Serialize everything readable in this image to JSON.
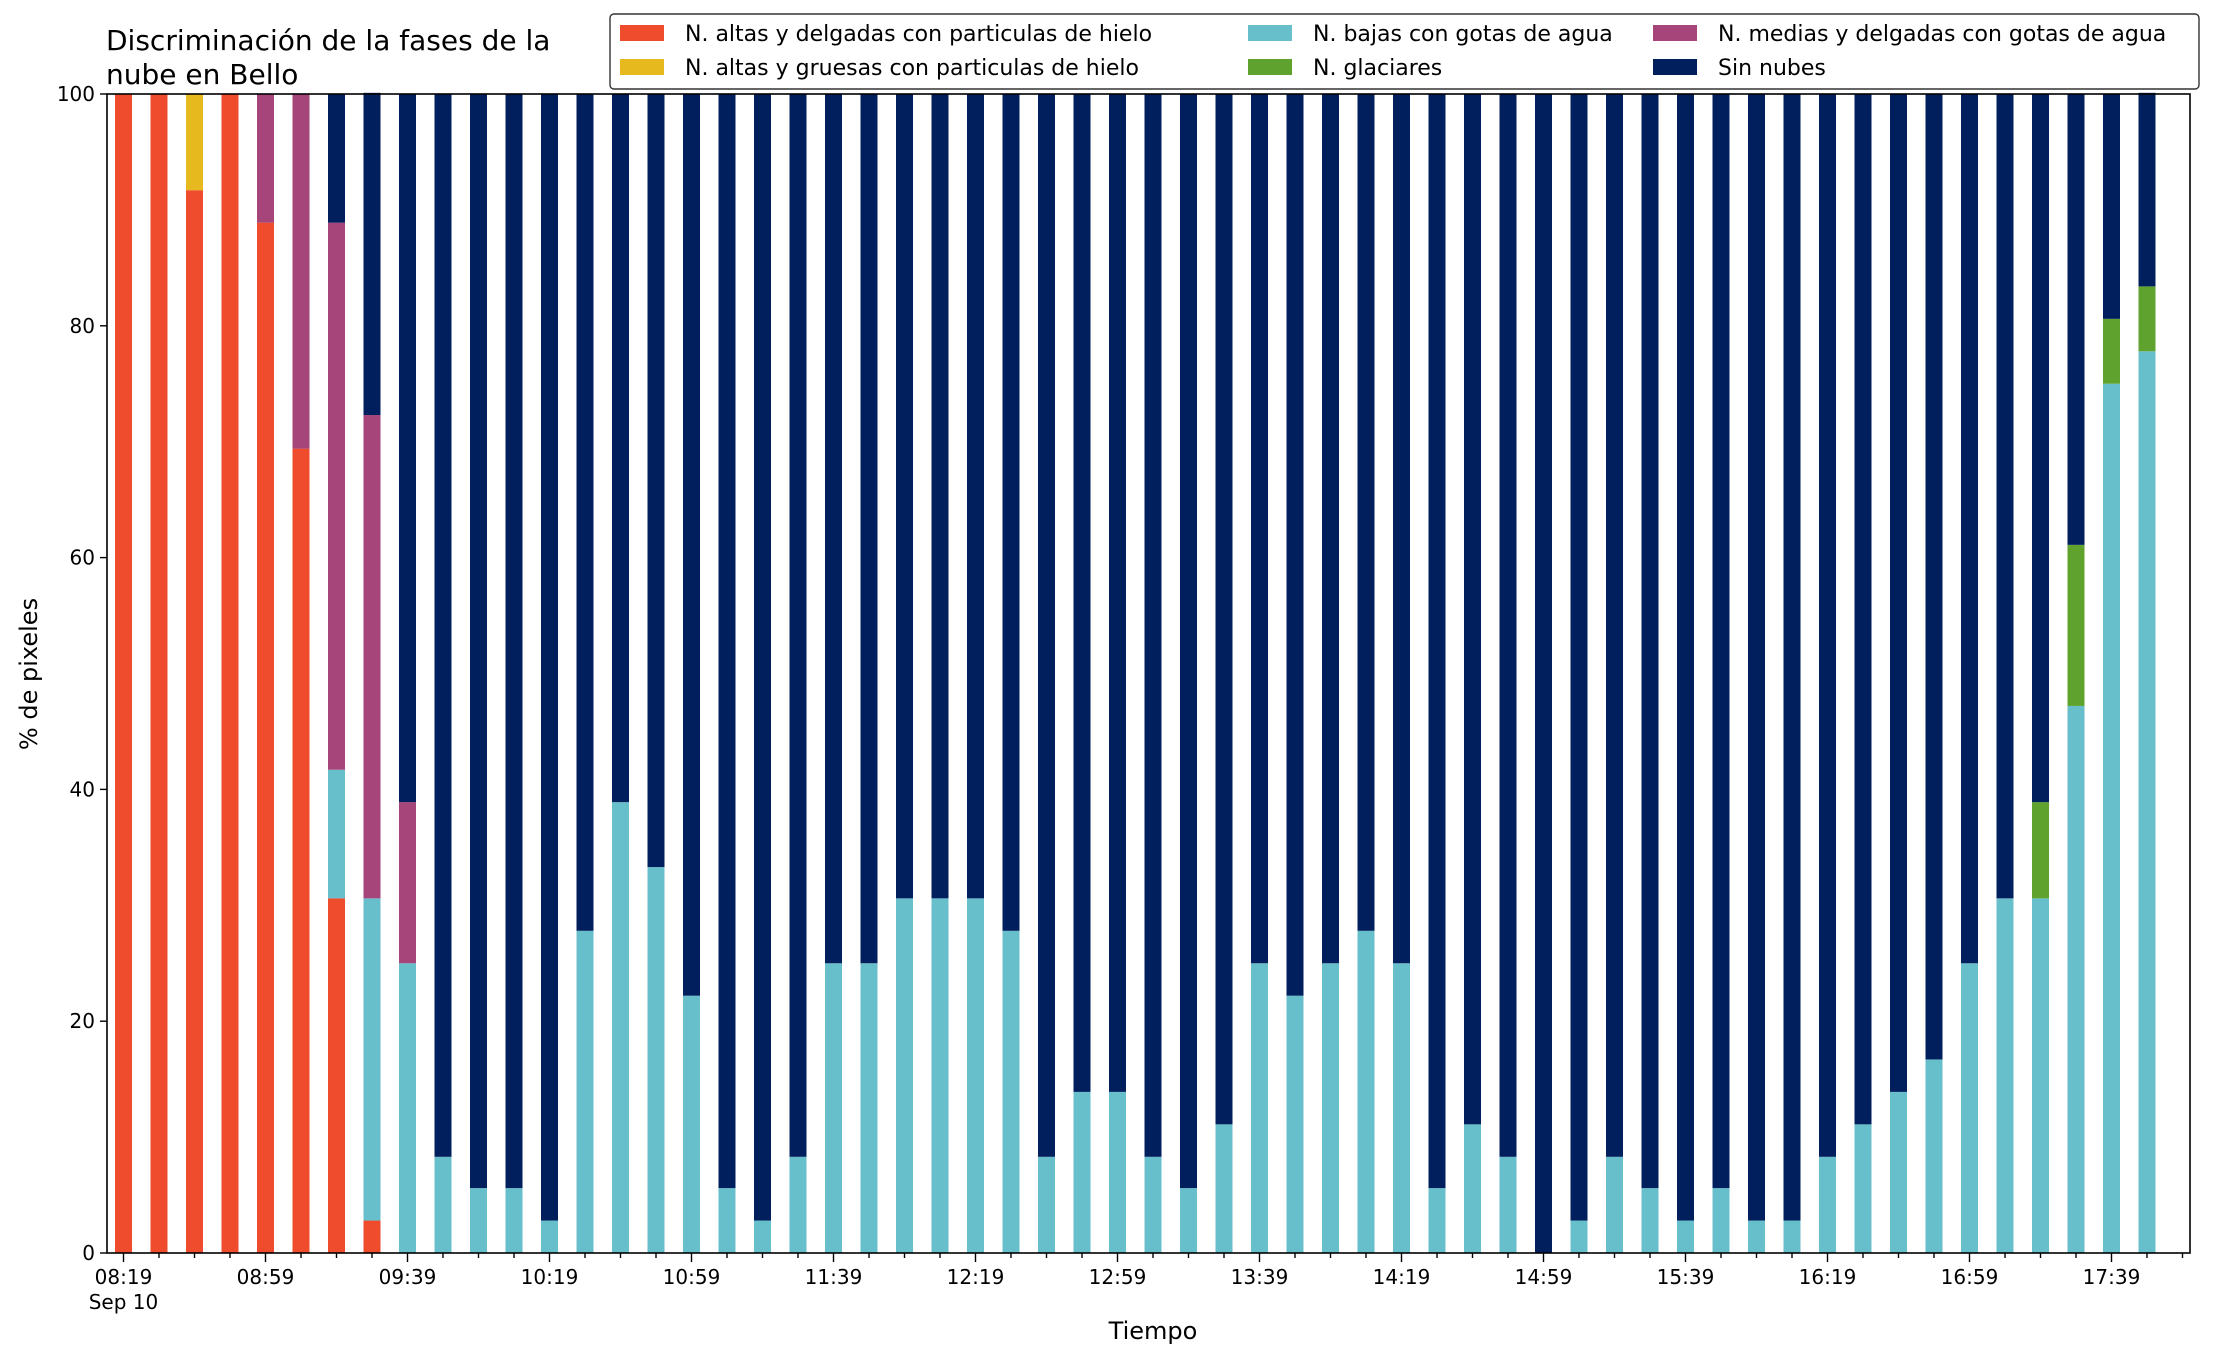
{
  "chart_data": {
    "type": "bar",
    "stacked": true,
    "title_line1": "Discriminación de la fases de la",
    "title_line2": "nube en Bello",
    "xlabel": "Tiempo",
    "ylabel": "% de pixeles",
    "ylim": [
      0,
      100
    ],
    "yticks": [
      "0",
      "20",
      "40",
      "60",
      "80",
      "100"
    ],
    "xtick_labels": [
      "08:19",
      "08:59",
      "09:39",
      "10:19",
      "10:59",
      "11:39",
      "12:19",
      "12:59",
      "13:39",
      "14:19",
      "14:59",
      "15:39",
      "16:19",
      "16:59",
      "17:39"
    ],
    "xtick_sublabel": "Sep 10",
    "grid": false,
    "legend_position": "top-right",
    "categories": [
      "08:19",
      "08:29",
      "08:39",
      "08:49",
      "08:59",
      "09:09",
      "09:19",
      "09:29",
      "09:39",
      "09:49",
      "09:59",
      "10:09",
      "10:19",
      "10:29",
      "10:39",
      "10:49",
      "10:59",
      "11:09",
      "11:19",
      "11:29",
      "11:39",
      "11:49",
      "11:59",
      "12:09",
      "12:19",
      "12:29",
      "12:39",
      "12:49",
      "12:59",
      "13:09",
      "13:19",
      "13:29",
      "13:39",
      "13:49",
      "13:59",
      "14:09",
      "14:19",
      "14:29",
      "14:39",
      "14:49",
      "14:59",
      "15:09",
      "15:19",
      "15:29",
      "15:39",
      "15:49",
      "15:59",
      "16:09",
      "16:19",
      "16:29",
      "16:39",
      "16:49",
      "16:59",
      "17:09",
      "17:19",
      "17:29",
      "17:39",
      "17:49"
    ],
    "series": [
      {
        "name": "N. altas y delgadas con particulas de hielo",
        "color": "#ee4c2c",
        "values": [
          100,
          100,
          91.7,
          100,
          88.9,
          69.4,
          30.6,
          2.8,
          0,
          0,
          0,
          0,
          0,
          0,
          0,
          0,
          0,
          0,
          0,
          0,
          0,
          0,
          0,
          0,
          0,
          0,
          0,
          0,
          0,
          0,
          0,
          0,
          0,
          0,
          0,
          0,
          0,
          0,
          0,
          0,
          0,
          0,
          0,
          0,
          0,
          0,
          0,
          0,
          0,
          0,
          0,
          0,
          0,
          0,
          0,
          0,
          0,
          0
        ]
      },
      {
        "name": "N. altas y gruesas con particulas de hielo",
        "color": "#e6b91e",
        "values": [
          0,
          0,
          8.3,
          0,
          0,
          0,
          0,
          0,
          0,
          0,
          0,
          0,
          0,
          0,
          0,
          0,
          0,
          0,
          0,
          0,
          0,
          0,
          0,
          0,
          0,
          0,
          0,
          0,
          0,
          0,
          0,
          0,
          0,
          0,
          0,
          0,
          0,
          0,
          0,
          0,
          0,
          0,
          0,
          0,
          0,
          0,
          0,
          0,
          0,
          0,
          0,
          0,
          0,
          0,
          0,
          0,
          0,
          0
        ]
      },
      {
        "name": "N. bajas con gotas de agua",
        "color": "#67bfcb",
        "values": [
          0,
          0,
          0,
          0,
          0,
          0,
          11.1,
          27.8,
          25,
          8.3,
          5.6,
          5.6,
          2.8,
          27.8,
          38.9,
          33.3,
          22.2,
          5.6,
          2.8,
          8.3,
          25,
          25,
          30.6,
          30.6,
          30.6,
          27.8,
          8.3,
          13.9,
          13.9,
          8.3,
          5.6,
          11.1,
          25,
          22.2,
          25,
          27.8,
          25,
          5.6,
          11.1,
          8.3,
          0,
          2.8,
          8.3,
          5.6,
          2.8,
          5.6,
          2.8,
          2.8,
          8.3,
          11.1,
          13.9,
          16.7,
          25,
          30.6,
          30.6,
          47.2,
          75,
          77.8
        ]
      },
      {
        "name": "N. glaciares",
        "color": "#5fa32e",
        "values": [
          0,
          0,
          0,
          0,
          0,
          0,
          0,
          0,
          0,
          0,
          0,
          0,
          0,
          0,
          0,
          0,
          0,
          0,
          0,
          0,
          0,
          0,
          0,
          0,
          0,
          0,
          0,
          0,
          0,
          0,
          0,
          0,
          0,
          0,
          0,
          0,
          0,
          0,
          0,
          0,
          0,
          0,
          0,
          0,
          0,
          0,
          0,
          0,
          0,
          0,
          0,
          0,
          0,
          0,
          8.3,
          13.9,
          5.6,
          5.6
        ]
      },
      {
        "name": "N. medias y delgadas con gotas de agua",
        "color": "#a5457a",
        "values": [
          0,
          0,
          0,
          0,
          11.1,
          30.6,
          47.2,
          41.7,
          13.9,
          0,
          0,
          0,
          0,
          0,
          0,
          0,
          0,
          0,
          0,
          0,
          0,
          0,
          0,
          0,
          0,
          0,
          0,
          0,
          0,
          0,
          0,
          0,
          0,
          0,
          0,
          0,
          0,
          0,
          0,
          0,
          0,
          0,
          0,
          0,
          0,
          0,
          0,
          0,
          0,
          0,
          0,
          0,
          0,
          0,
          0,
          0,
          0,
          0
        ]
      },
      {
        "name": "Sin nubes",
        "color": "#001f5c",
        "values": [
          0,
          0,
          0,
          0,
          0,
          0,
          11.1,
          27.8,
          61.1,
          91.7,
          94.4,
          94.4,
          97.2,
          72.2,
          61.1,
          66.7,
          77.8,
          94.4,
          97.2,
          91.7,
          75,
          75,
          69.4,
          69.4,
          69.4,
          72.2,
          91.7,
          86.1,
          86.1,
          91.7,
          94.4,
          88.9,
          75,
          77.8,
          75,
          72.2,
          75,
          94.4,
          88.9,
          91.7,
          100,
          97.2,
          91.7,
          94.4,
          97.2,
          94.4,
          97.2,
          97.2,
          91.7,
          88.9,
          86.1,
          83.3,
          75,
          69.4,
          61.1,
          38.9,
          19.4,
          16.7
        ]
      }
    ],
    "legend_order": [
      0,
      1,
      2,
      3,
      4,
      5
    ]
  }
}
